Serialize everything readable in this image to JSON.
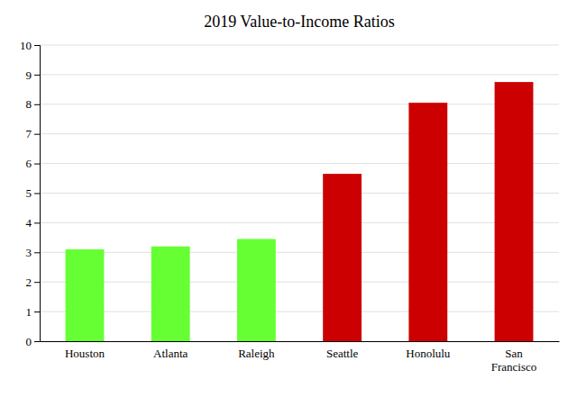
{
  "chart_data": {
    "type": "bar",
    "title": "2019 Value-to-Income Ratios",
    "categories": [
      "Houston",
      "Atlanta",
      "Raleigh",
      "Seattle",
      "Honolulu",
      "San\nFrancisco"
    ],
    "values": [
      3.1,
      3.2,
      3.45,
      5.65,
      8.05,
      8.75
    ],
    "colors": [
      "#66ff33",
      "#66ff33",
      "#66ff33",
      "#cc0000",
      "#cc0000",
      "#cc0000"
    ],
    "ylim": [
      0,
      10
    ],
    "yticks": [
      0,
      1,
      2,
      3,
      4,
      5,
      6,
      7,
      8,
      9,
      10
    ],
    "grid": true
  }
}
